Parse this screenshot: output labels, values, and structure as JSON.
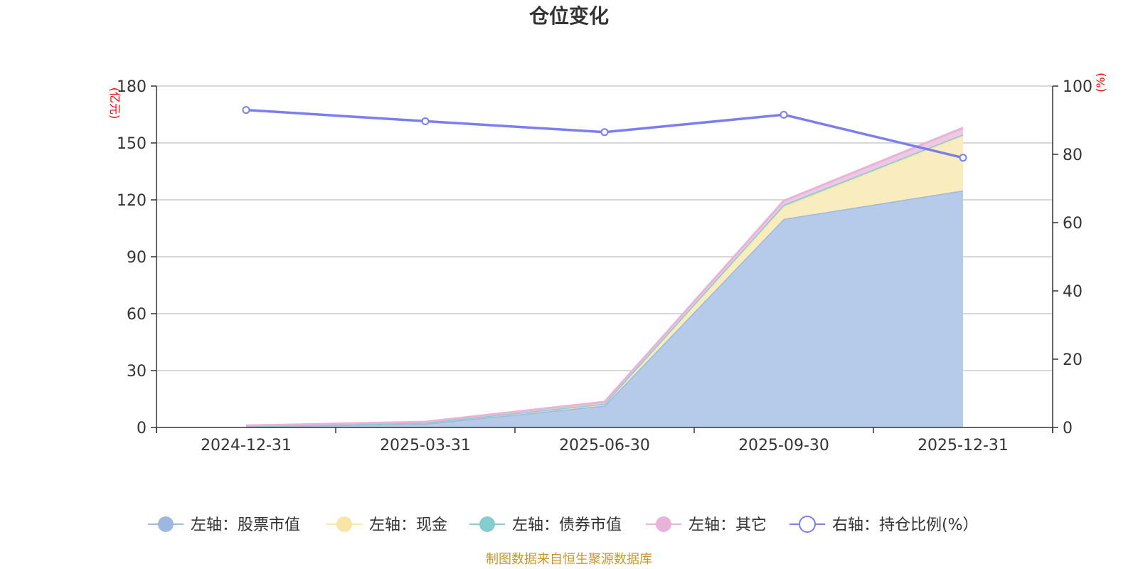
{
  "chart_data": {
    "type": "area",
    "title": "仓位变化",
    "categories": [
      "2024-12-31",
      "2025-03-31",
      "2025-06-30",
      "2025-09-30",
      "2025-12-31"
    ],
    "left_axis": {
      "unit": "(亿元)",
      "ylim": [
        0,
        180
      ],
      "ticks": [
        0,
        30,
        60,
        90,
        120,
        150,
        180
      ]
    },
    "right_axis": {
      "unit": "(%)",
      "ylim": [
        0,
        100
      ],
      "ticks": [
        0,
        20,
        40,
        60,
        80,
        100
      ]
    },
    "series": [
      {
        "name": "左轴：股票市值",
        "axis": "left",
        "stacked": true,
        "values": [
          0.5,
          2.0,
          11.5,
          110.0,
          125.0
        ],
        "color": "#9db8e0",
        "fill": "#b6cbe9"
      },
      {
        "name": "左轴：现金",
        "axis": "left",
        "stacked": true,
        "values": [
          0.2,
          0.5,
          1.0,
          6.5,
          29.0
        ],
        "color": "#f9e6a6",
        "fill": "#f9ecbe"
      },
      {
        "name": "左轴：债券市值",
        "axis": "left",
        "stacked": true,
        "values": [
          0.0,
          0.0,
          0.0,
          1.0,
          0.5
        ],
        "color": "#86cdd0",
        "fill": "#a8dcde"
      },
      {
        "name": "左轴：其它",
        "axis": "left",
        "stacked": true,
        "values": [
          0.3,
          0.5,
          1.0,
          2.0,
          3.5
        ],
        "color": "#e8b3d8",
        "fill": "#efc8e3"
      },
      {
        "name": "右轴：持仓比例(%）",
        "axis": "right",
        "type": "line",
        "values": [
          93.0,
          89.7,
          86.5,
          91.6,
          79.0
        ],
        "color": "#7b7ef0"
      }
    ],
    "grid": true,
    "legend": "bottom"
  },
  "footer": {
    "source": "制图数据来自恒生聚源数据库"
  }
}
